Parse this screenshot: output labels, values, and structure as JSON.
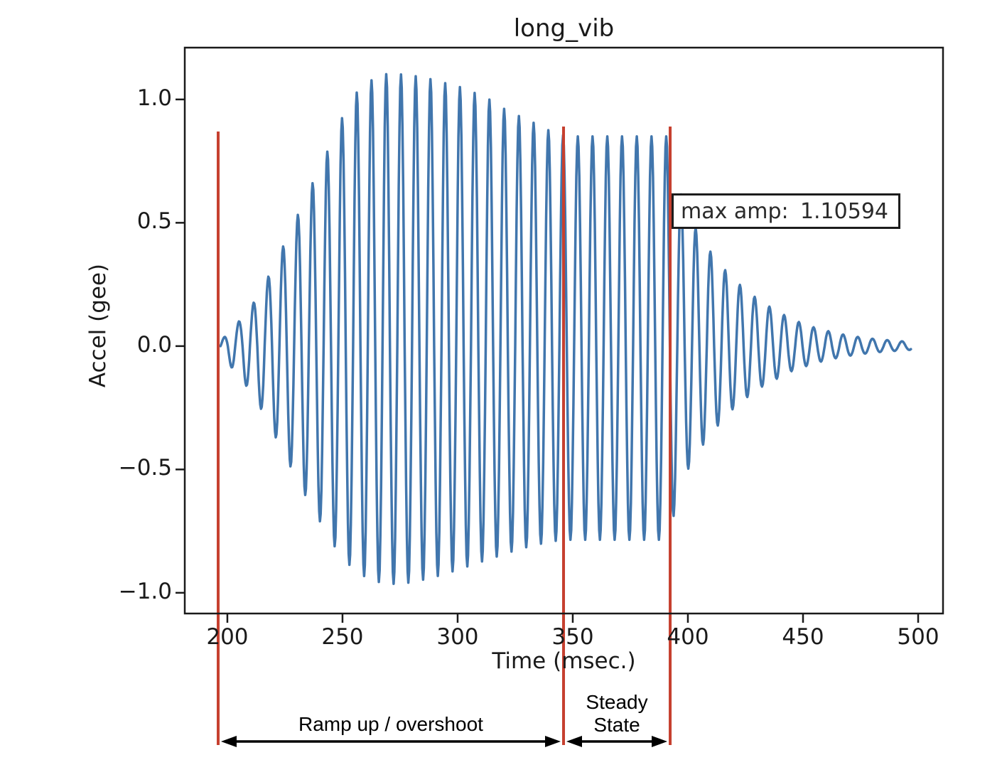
{
  "figure": {
    "title": "long_vib",
    "xlabel": "Time (msec.)",
    "ylabel": "Accel (gee)"
  },
  "annotation": {
    "label": "max amp:",
    "value": "1.10594"
  },
  "regions": {
    "ramp_label": "Ramp up / overshoot",
    "steady_label_line1": "Steady",
    "steady_label_line2": "State"
  },
  "colors": {
    "waveform": "#4176ad",
    "marker_line": "#c6402f",
    "axis": "#1a1a1a",
    "arrow": "#000000"
  },
  "chart_data": {
    "type": "line",
    "title": "long_vib",
    "xlabel": "Time (msec.)",
    "ylabel": "Accel (gee)",
    "grid": false,
    "xlim": [
      181.5,
      510.8
    ],
    "ylim": [
      -1.084,
      1.21
    ],
    "xtick_values": [
      200,
      250,
      300,
      350,
      400,
      450,
      500
    ],
    "xtick_labels": [
      "200",
      "250",
      "300",
      "350",
      "400",
      "450",
      "500"
    ],
    "ytick_values": [
      1.0,
      0.5,
      0.0,
      -0.5,
      -1.0
    ],
    "ytick_labels": [
      "1.0",
      "0.5",
      "0.0",
      "−0.5",
      "−1.0"
    ],
    "max_amp": 1.10594,
    "max_amp_time": 270,
    "marker_lines_t": [
      196,
      346,
      392.3
    ],
    "annotated_regions": [
      {
        "label": "Ramp up / overshoot",
        "from_t": 196,
        "to_t": 346
      },
      {
        "label": "Steady State",
        "from_t": 346,
        "to_t": 392.3
      }
    ],
    "signal": {
      "description": "Vibration acceleration: ramp up with overshoot to 1.10594 g near t=270 ms, steady state ~0.85 g from 346-392 ms, then exponential ring-down to ~0 by 497 ms",
      "t_start": 197,
      "t_end": 497,
      "period_ms": 6.4,
      "steady_state_amp": 0.85,
      "envelope_pos": [
        [
          197,
          0.02
        ],
        [
          203,
          0.08
        ],
        [
          209,
          0.14
        ],
        [
          215,
          0.23
        ],
        [
          221,
          0.34
        ],
        [
          227,
          0.46
        ],
        [
          233,
          0.58
        ],
        [
          239,
          0.7
        ],
        [
          245,
          0.82
        ],
        [
          251,
          0.95
        ],
        [
          257,
          1.04
        ],
        [
          263,
          1.08
        ],
        [
          270,
          1.106
        ],
        [
          277,
          1.1
        ],
        [
          285,
          1.09
        ],
        [
          293,
          1.07
        ],
        [
          301,
          1.05
        ],
        [
          309,
          1.02
        ],
        [
          316,
          0.99
        ],
        [
          322,
          0.95
        ],
        [
          330,
          0.92
        ],
        [
          338,
          0.88
        ],
        [
          344,
          0.86
        ],
        [
          348,
          0.85
        ],
        [
          391,
          0.85
        ],
        [
          393,
          0.78
        ],
        [
          396,
          0.64
        ],
        [
          400,
          0.54
        ],
        [
          405,
          0.45
        ],
        [
          410,
          0.38
        ],
        [
          415,
          0.32
        ],
        [
          420,
          0.27
        ],
        [
          426,
          0.22
        ],
        [
          432,
          0.18
        ],
        [
          438,
          0.145
        ],
        [
          444,
          0.115
        ],
        [
          450,
          0.09
        ],
        [
          456,
          0.072
        ],
        [
          462,
          0.058
        ],
        [
          468,
          0.046
        ],
        [
          474,
          0.037
        ],
        [
          480,
          0.03
        ],
        [
          486,
          0.025
        ],
        [
          492,
          0.02
        ],
        [
          497,
          0.017
        ]
      ],
      "envelope_neg": [
        [
          197,
          0.03
        ],
        [
          203,
          0.1
        ],
        [
          209,
          0.17
        ],
        [
          215,
          0.26
        ],
        [
          221,
          0.37
        ],
        [
          227,
          0.48
        ],
        [
          233,
          0.59
        ],
        [
          239,
          0.69
        ],
        [
          245,
          0.79
        ],
        [
          251,
          0.87
        ],
        [
          257,
          0.92
        ],
        [
          263,
          0.95
        ],
        [
          270,
          0.965
        ],
        [
          278,
          0.96
        ],
        [
          286,
          0.945
        ],
        [
          294,
          0.925
        ],
        [
          302,
          0.9
        ],
        [
          310,
          0.875
        ],
        [
          318,
          0.85
        ],
        [
          326,
          0.825
        ],
        [
          334,
          0.805
        ],
        [
          342,
          0.79
        ],
        [
          348,
          0.785
        ],
        [
          391,
          0.785
        ],
        [
          393,
          0.72
        ],
        [
          396,
          0.6
        ],
        [
          400,
          0.5
        ],
        [
          405,
          0.42
        ],
        [
          410,
          0.355
        ],
        [
          415,
          0.3
        ],
        [
          420,
          0.25
        ],
        [
          426,
          0.205
        ],
        [
          432,
          0.165
        ],
        [
          438,
          0.135
        ],
        [
          444,
          0.105
        ],
        [
          450,
          0.085
        ],
        [
          456,
          0.067
        ],
        [
          462,
          0.053
        ],
        [
          468,
          0.042
        ],
        [
          474,
          0.034
        ],
        [
          480,
          0.027
        ],
        [
          486,
          0.022
        ],
        [
          492,
          0.018
        ],
        [
          497,
          0.015
        ]
      ]
    }
  }
}
